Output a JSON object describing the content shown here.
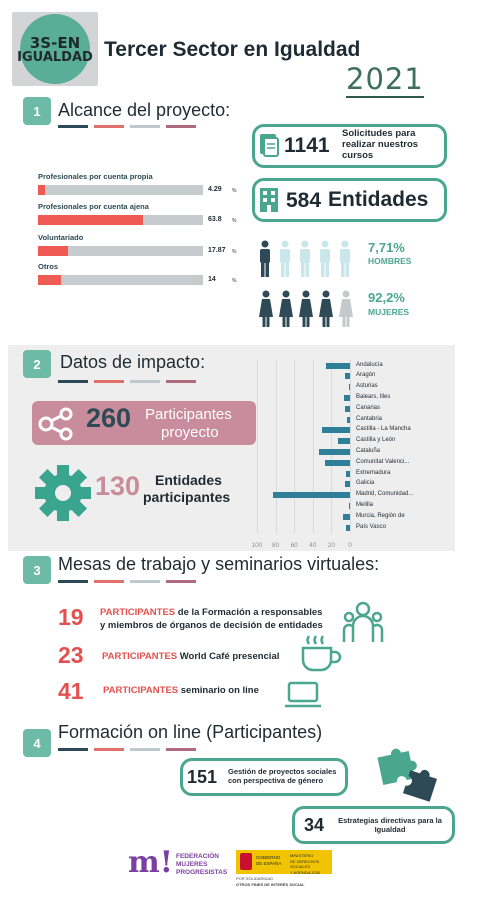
{
  "header": {
    "logo_line1": "3S-EN",
    "logo_line2": "IGUALDAD",
    "title": "Tercer Sector en Igualdad",
    "year": "2021"
  },
  "colors": {
    "teal": "#4ba68f",
    "coral": "#ef5a54",
    "navy": "#2e4a56",
    "mauve": "#c88c9c",
    "bar": "#2f7f99"
  },
  "s1": {
    "num": "1",
    "title": "Alcance del proyecto:",
    "bars": [
      {
        "label": "Profesionales por cuenta propia",
        "value": "4.29",
        "frac": 0.043
      },
      {
        "label": "Profesionales por cuenta ajena",
        "value": "63.8",
        "frac": 0.638
      },
      {
        "label": "Voluntariado",
        "value": "17.87",
        "frac": 0.179
      },
      {
        "label": "Otros",
        "value": "14",
        "frac": 0.14
      }
    ],
    "pct_sign": "%",
    "solicitudes_num": "1141",
    "solicitudes_text": "Solicitudes para realizar nuestros cursos",
    "entidades_num": "584",
    "entidades_text": "Entidades",
    "hombres_pct": "7,71%",
    "hombres_label": "HOMBRES",
    "mujeres_pct": "92,2%",
    "mujeres_label": "MUJERES",
    "icons": [
      "document-icon",
      "building-icon",
      "male-person-icon",
      "female-person-icon"
    ]
  },
  "s2": {
    "num": "2",
    "title": "Datos de impacto:",
    "participantes_num": "260",
    "participantes_text1": "Participantes",
    "participantes_text2": "proyecto",
    "entidades_num": "130",
    "entidades_text1": "Entidades",
    "entidades_text2": "participantes",
    "icons": [
      "share-icon",
      "gear-icon"
    ],
    "chart_data": {
      "type": "bar",
      "orientation": "horizontal",
      "categories": [
        "Andalucía",
        "Aragón",
        "Asturias",
        "Balears, Illes",
        "Canarias",
        "Cantabria",
        "Castilla - La Mancha",
        "Castilla y León",
        "Cataluña",
        "Comunitat Valenci...",
        "Extremadura",
        "Galicia",
        "Madrid, Comunidad...",
        "Melilla",
        "Murcia, Región de",
        "País Vasco"
      ],
      "values": [
        26,
        5,
        1,
        6,
        5,
        3,
        30,
        13,
        33,
        27,
        4,
        5,
        83,
        1,
        7,
        4
      ],
      "xlim": [
        100,
        0
      ],
      "ticks": [
        "100",
        "80",
        "60",
        "40",
        "20",
        "0"
      ],
      "grid": true
    }
  },
  "s3": {
    "num": "3",
    "title": "Mesas de trabajo y seminarios virtuales:",
    "items": [
      {
        "num": "19",
        "tag": "PARTICIPANTES",
        "text": "de la Formación a responsables",
        "text2": "y miembros de órganos de decisión de entidades"
      },
      {
        "num": "23",
        "tag": "PARTICIPANTES",
        "text": "World Café presencial"
      },
      {
        "num": "41",
        "tag": "PARTICIPANTES",
        "text": "seminario on line"
      }
    ],
    "icons": [
      "group-icon",
      "coffee-cup-icon",
      "laptop-icon"
    ]
  },
  "s4": {
    "num": "4",
    "title": "Formación on line (Participantes)",
    "box1_num": "151",
    "box1_text": "Gestión de proyectos sociales con perspectiva de género",
    "box2_num": "34",
    "box2_text": "Estrategias directivas para la Igualdad",
    "icons": [
      "puzzle-icon"
    ]
  },
  "footer": {
    "fmp_l1": "FEDERACIÓN",
    "fmp_l2": "MUJERES",
    "fmp_l3": "PROGRESISTAS",
    "gov_l1": "GOBIERNO",
    "gov_l2": "DE ESPAÑA",
    "gov_r1": "MINISTERIO",
    "gov_r2": "DE DERECHOS SOCIALES",
    "gov_r3": "Y AGENDA 2030",
    "sub1": "POR SOLIDARIDAD",
    "sub2": "OTROS FINES DE INTERÉS SOCIAL"
  }
}
